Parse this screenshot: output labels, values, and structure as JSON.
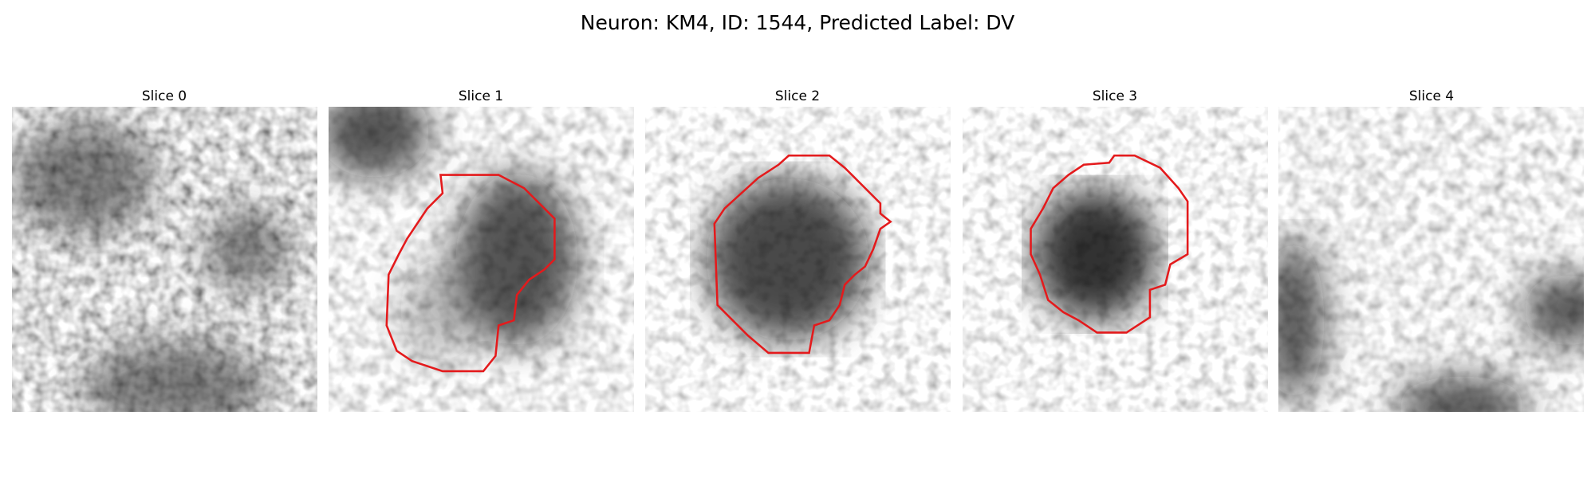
{
  "title": "Neuron: KM4, ID: 1544, Predicted Label: DV",
  "panels": [
    {
      "title": "Slice 0"
    },
    {
      "title": "Slice 1"
    },
    {
      "title": "Slice 2"
    },
    {
      "title": "Slice 3"
    },
    {
      "title": "Slice 4"
    }
  ]
}
